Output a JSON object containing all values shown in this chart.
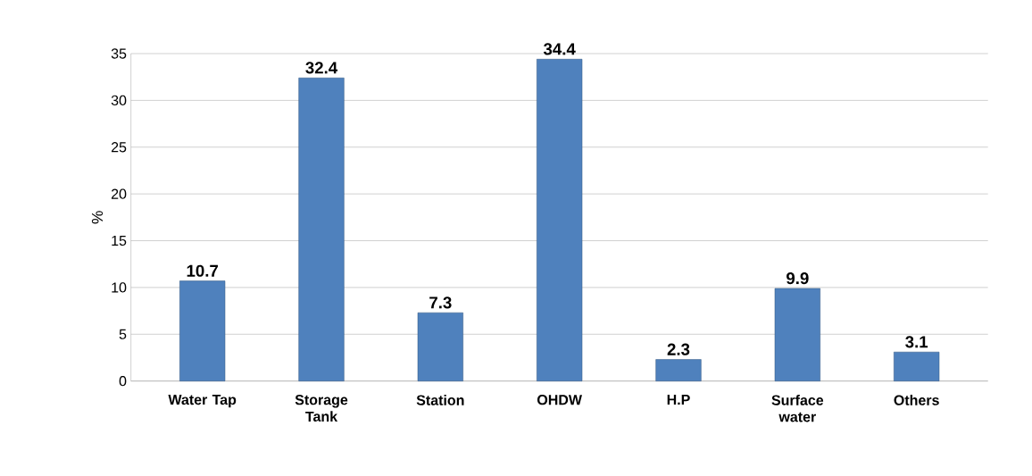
{
  "chart_data": {
    "type": "bar",
    "ylabel": "%",
    "categories": [
      "Water Tap",
      "Storage Tank",
      "Station",
      "OHDW",
      "H.P",
      "Surface water",
      "Others"
    ],
    "values": [
      10.7,
      32.4,
      7.3,
      34.4,
      2.3,
      9.9,
      3.1
    ],
    "color": "#4f81bd",
    "ylim": [
      0,
      35
    ],
    "yticks": [
      0,
      5,
      10,
      15,
      20,
      25,
      30,
      35
    ],
    "grid": "y",
    "data_labels": true
  }
}
